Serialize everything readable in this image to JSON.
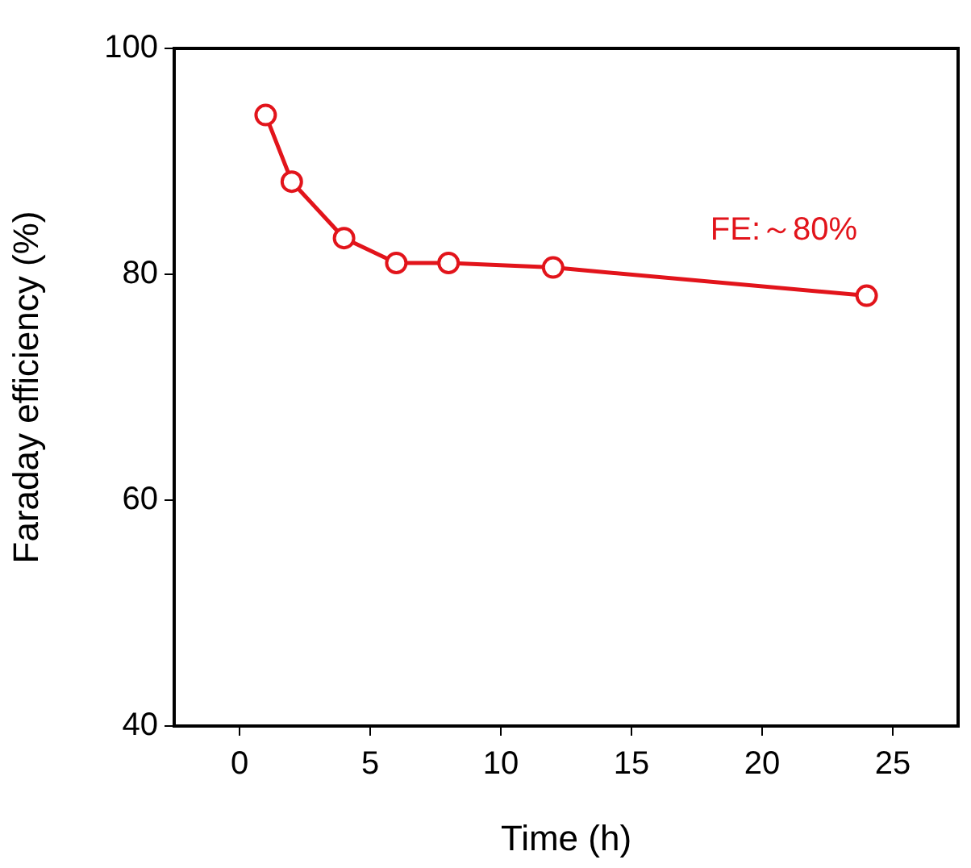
{
  "chart_data": {
    "type": "line",
    "xlabel": "Time (h)",
    "ylabel": "Faraday efficiency (%)",
    "x": [
      1,
      2,
      4,
      6,
      8,
      12,
      24
    ],
    "series": [
      {
        "color": "#e2141b",
        "values": [
          94.1,
          88.2,
          83.2,
          81,
          81,
          80.6,
          78.1
        ]
      }
    ],
    "xlim": [
      -2.5,
      27.5
    ],
    "xticks": [
      0,
      5,
      10,
      15,
      20,
      25
    ],
    "ylim": [
      40,
      100
    ],
    "yticks": [
      40,
      60,
      80,
      100
    ],
    "annotations": [
      "FE:～80%"
    ],
    "marker": "circle",
    "line_style": "solid",
    "grid": false,
    "legend": false
  }
}
